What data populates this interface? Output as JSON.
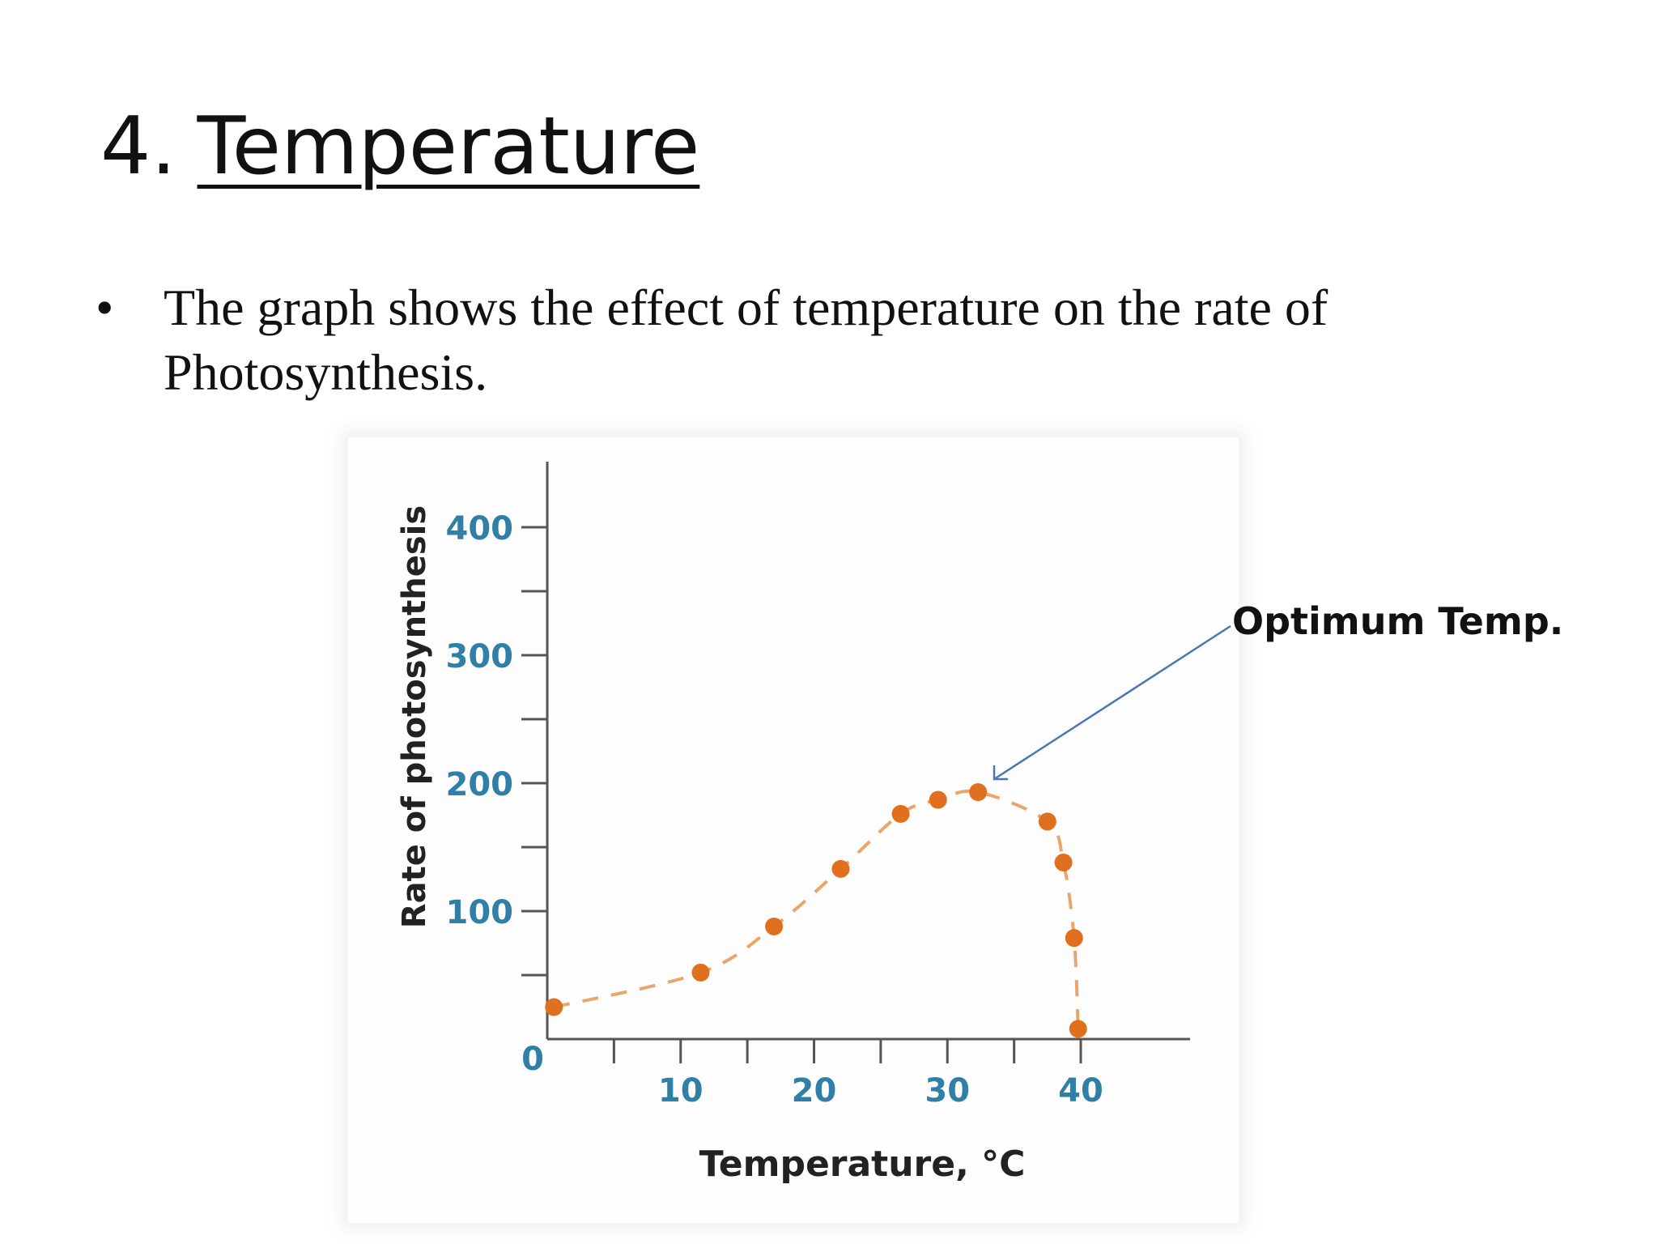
{
  "slide": {
    "title_number": "4.",
    "title_text": "Temperature",
    "bullet_symbol": "•",
    "bullet_text": "The graph shows the effect of temperature on the rate of Photosynthesis."
  },
  "annotation": {
    "label": "Optimum Temp."
  },
  "colors": {
    "point": "#e0701e",
    "dash": "#e9a66c",
    "tick_label": "#2f7fa6",
    "axis": "#555555",
    "arrow": "#4a76b6",
    "ylabel": "#222222"
  },
  "chart_data": {
    "type": "scatter",
    "xlabel": "Temperature, °C",
    "ylabel": "Rate of photosynthesis",
    "xlim": [
      0,
      50
    ],
    "ylim": [
      0,
      420
    ],
    "x_ticks": [
      {
        "value": 0,
        "label": "0"
      },
      {
        "value": 10,
        "label": "10"
      },
      {
        "value": 20,
        "label": "20"
      },
      {
        "value": 30,
        "label": "30"
      },
      {
        "value": 40,
        "label": "40"
      }
    ],
    "x_minor_ticks": [
      5,
      15,
      25,
      35
    ],
    "y_ticks": [
      {
        "value": 100,
        "label": "100"
      },
      {
        "value": 200,
        "label": "200"
      },
      {
        "value": 300,
        "label": "300"
      },
      {
        "value": 400,
        "label": "400"
      }
    ],
    "y_minor_ticks": [
      50,
      150,
      250,
      350
    ],
    "grid": false,
    "legend": "none",
    "series": [
      {
        "line_style": "dashed",
        "x": [
          0.5,
          11.5,
          17,
          22,
          26.5,
          29.3,
          32.3,
          37.5,
          38.7,
          39.5,
          39.8
        ],
        "y": [
          25,
          52,
          88,
          133,
          176,
          187,
          193,
          170,
          138,
          79,
          8
        ]
      }
    ]
  }
}
